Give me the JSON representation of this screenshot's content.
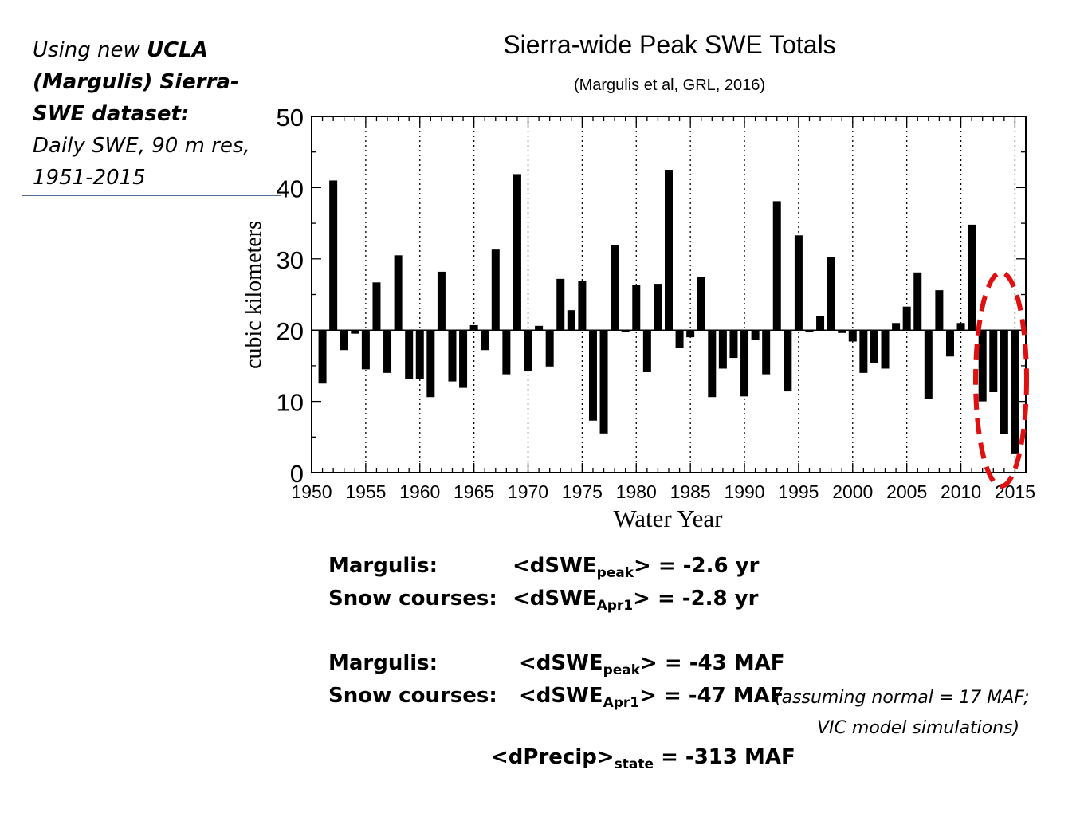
{
  "info_box": {
    "line1_pre": "Using new ",
    "line1_bold": "UCLA",
    "line2_bold": "(Margulis) Sierra-",
    "line3_bold": "SWE dataset:",
    "line4": "Daily SWE, 90 m res,",
    "line5": "1951-2015"
  },
  "chart_data": {
    "type": "bar",
    "title": "Sierra-wide Peak SWE Totals",
    "subtitle": "(Margulis et al, GRL, 2016)",
    "xlabel": "Water Year",
    "ylabel": "cubic kilometers",
    "xlim": [
      1950,
      2016
    ],
    "ylim": [
      0,
      50
    ],
    "baseline": 20,
    "x_ticks": [
      "1950",
      "1955",
      "1960",
      "1965",
      "1970",
      "1975",
      "1980",
      "1985",
      "1990",
      "1995",
      "2000",
      "2005",
      "2010",
      "2015"
    ],
    "y_ticks": [
      "0",
      "10",
      "20",
      "30",
      "40",
      "50"
    ],
    "grid": "dotted vertical lines every 5 years",
    "x": [
      1951,
      1952,
      1953,
      1954,
      1955,
      1956,
      1957,
      1958,
      1959,
      1960,
      1961,
      1962,
      1963,
      1964,
      1965,
      1966,
      1967,
      1968,
      1969,
      1970,
      1971,
      1972,
      1973,
      1974,
      1975,
      1976,
      1977,
      1978,
      1979,
      1980,
      1981,
      1982,
      1983,
      1984,
      1985,
      1986,
      1987,
      1988,
      1989,
      1990,
      1991,
      1992,
      1993,
      1994,
      1995,
      1996,
      1997,
      1998,
      1999,
      2000,
      2001,
      2002,
      2003,
      2004,
      2005,
      2006,
      2007,
      2008,
      2009,
      2010,
      2011,
      2012,
      2013,
      2014,
      2015
    ],
    "values": [
      12.5,
      41,
      17.2,
      19.5,
      14.5,
      26.7,
      14,
      30.5,
      13.1,
      13.2,
      10.6,
      28.2,
      12.8,
      11.9,
      20.7,
      17.2,
      31.3,
      13.8,
      41.9,
      14.2,
      20.6,
      14.9,
      27.2,
      22.8,
      26.9,
      7.3,
      5.5,
      31.9,
      20,
      26.4,
      14.1,
      26.5,
      42.5,
      17.5,
      19,
      27.5,
      10.6,
      14.6,
      16.1,
      10.7,
      18.6,
      13.8,
      38.1,
      11.4,
      33.3,
      20,
      22,
      30.2,
      19.6,
      18.4,
      14,
      15.4,
      14.6,
      21,
      23.3,
      28.1,
      10.3,
      25.6,
      16.3,
      21,
      34.8,
      10,
      11.3,
      5.4,
      2.7
    ]
  },
  "highlight": {
    "shape": "red dashed ellipse",
    "years": "2012-2015",
    "color": "#e01010"
  },
  "stats": {
    "row1_label": "Margulis:",
    "row1_pre": "<dSWE",
    "row1_sub": "peak",
    "row1_post": "> = -2.6 yr",
    "row2_label": "Snow courses:",
    "row2_pre": "<dSWE",
    "row2_sub": "Apr1",
    "row2_post": "> = -2.8 yr",
    "row3_label": "Margulis:",
    "row3_pre": "<dSWE",
    "row3_sub": "peak",
    "row3_post": "> = -43 MAF",
    "row4_label": "Snow courses:",
    "row4_pre": "<dSWE",
    "row4_sub": "Apr1",
    "row4_post": "> = -47 MAF",
    "row4_note": "(assuming normal = 17 MAF;",
    "row4_note2": "VIC model simulations)",
    "row5_pre": "<dPrecip>",
    "row5_sub": "state",
    "row5_post": " = -313 MAF"
  }
}
